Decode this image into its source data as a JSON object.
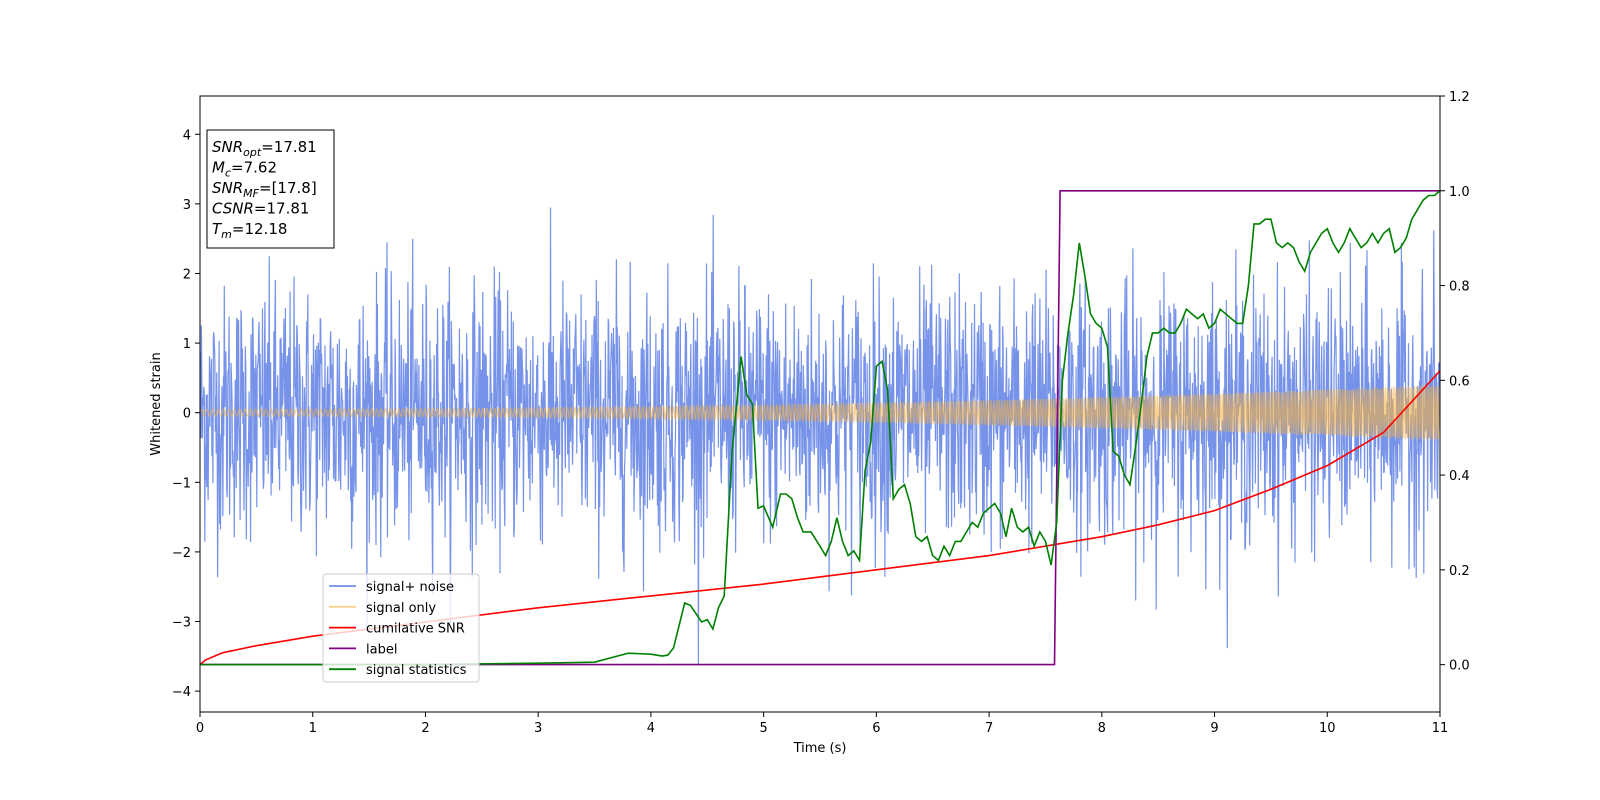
{
  "chart_data": {
    "type": "line",
    "xlabel": "Time (s)",
    "ylabel": "Whitened strain",
    "xlim": [
      0,
      11
    ],
    "ylim_left": [
      -4.3,
      4.55
    ],
    "ylim_right": [
      -0.1,
      1.2
    ],
    "xticks": [
      "0",
      "1",
      "2",
      "3",
      "4",
      "5",
      "6",
      "7",
      "8",
      "9",
      "10",
      "11"
    ],
    "yticks_left": [
      "−4",
      "−3",
      "−2",
      "−1",
      "0",
      "1",
      "2",
      "3",
      "4"
    ],
    "yticks_right": [
      "0.0",
      "0.2",
      "0.4",
      "0.6",
      "0.8",
      "1.0",
      "1.2"
    ],
    "grid": false,
    "legend_position": "lower-left",
    "annotation": {
      "lines": [
        {
          "base": "SNR",
          "sub": "opt",
          "value": "=17.81"
        },
        {
          "base": "M",
          "sub": "c",
          "value": "=7.62"
        },
        {
          "base": "SNR",
          "sub": "MF",
          "value": "=[17.8]"
        },
        {
          "base": "CSNR",
          "sub": "",
          "value": "=17.81"
        },
        {
          "base": "T",
          "sub": "m",
          "value": "=12.18"
        }
      ]
    },
    "series": [
      {
        "name": "signal+ noise",
        "axis": "left",
        "color": "#4169e1",
        "kind": "noise",
        "std": 0.9,
        "range": [
          -3.85,
          3.85
        ]
      },
      {
        "name": "signal only",
        "axis": "left",
        "color": "#f5b041",
        "kind": "chirp",
        "amplitude_start": 0.05,
        "amplitude_end": 0.4
      },
      {
        "name": "cumilative SNR",
        "axis": "right",
        "color": "#ff0000",
        "x": [
          0,
          0.05,
          0.2,
          0.5,
          1,
          2,
          3,
          4,
          5,
          6,
          7,
          8,
          8.5,
          9,
          9.5,
          10,
          10.5,
          11
        ],
        "y": [
          0.0,
          0.01,
          0.025,
          0.04,
          0.06,
          0.09,
          0.12,
          0.145,
          0.17,
          0.2,
          0.23,
          0.27,
          0.295,
          0.325,
          0.37,
          0.42,
          0.49,
          0.62
        ]
      },
      {
        "name": "label",
        "axis": "right",
        "color": "#800080",
        "x": [
          0,
          7.58,
          7.63,
          11
        ],
        "y": [
          0,
          0,
          1,
          1
        ]
      },
      {
        "name": "signal statistics",
        "axis": "right",
        "color": "#008000",
        "x": [
          0,
          1,
          2,
          3,
          3.5,
          3.7,
          3.8,
          4.0,
          4.1,
          4.15,
          4.2,
          4.3,
          4.35,
          4.45,
          4.5,
          4.55,
          4.6,
          4.65,
          4.72,
          4.8,
          4.85,
          4.9,
          4.95,
          5.0,
          5.08,
          5.12,
          5.15,
          5.2,
          5.25,
          5.3,
          5.35,
          5.42,
          5.5,
          5.55,
          5.6,
          5.65,
          5.7,
          5.75,
          5.8,
          5.85,
          5.9,
          5.95,
          6.0,
          6.05,
          6.1,
          6.15,
          6.2,
          6.25,
          6.3,
          6.35,
          6.4,
          6.45,
          6.5,
          6.55,
          6.6,
          6.65,
          6.7,
          6.75,
          6.8,
          6.85,
          6.9,
          6.95,
          7.0,
          7.05,
          7.1,
          7.15,
          7.2,
          7.25,
          7.3,
          7.35,
          7.4,
          7.45,
          7.5,
          7.55,
          7.6,
          7.65,
          7.7,
          7.75,
          7.8,
          7.85,
          7.9,
          7.95,
          8.0,
          8.05,
          8.1,
          8.15,
          8.2,
          8.25,
          8.3,
          8.35,
          8.4,
          8.45,
          8.5,
          8.55,
          8.6,
          8.65,
          8.7,
          8.75,
          8.8,
          8.85,
          8.9,
          8.95,
          9.0,
          9.05,
          9.1,
          9.15,
          9.2,
          9.25,
          9.3,
          9.35,
          9.4,
          9.45,
          9.5,
          9.55,
          9.6,
          9.65,
          9.7,
          9.75,
          9.8,
          9.85,
          9.9,
          9.95,
          10.0,
          10.05,
          10.1,
          10.15,
          10.2,
          10.25,
          10.3,
          10.35,
          10.4,
          10.45,
          10.5,
          10.55,
          10.6,
          10.65,
          10.7,
          10.75,
          10.8,
          10.85,
          10.9,
          10.95,
          11.0
        ],
        "y": [
          0,
          0,
          0,
          0.003,
          0.005,
          0.018,
          0.024,
          0.022,
          0.018,
          0.02,
          0.035,
          0.13,
          0.125,
          0.09,
          0.095,
          0.075,
          0.12,
          0.145,
          0.45,
          0.65,
          0.57,
          0.55,
          0.33,
          0.335,
          0.29,
          0.33,
          0.36,
          0.36,
          0.35,
          0.31,
          0.28,
          0.28,
          0.25,
          0.23,
          0.26,
          0.31,
          0.26,
          0.23,
          0.24,
          0.22,
          0.41,
          0.47,
          0.63,
          0.64,
          0.58,
          0.35,
          0.37,
          0.38,
          0.34,
          0.27,
          0.26,
          0.27,
          0.23,
          0.22,
          0.25,
          0.23,
          0.26,
          0.26,
          0.28,
          0.3,
          0.29,
          0.32,
          0.33,
          0.34,
          0.32,
          0.27,
          0.33,
          0.29,
          0.28,
          0.29,
          0.25,
          0.28,
          0.26,
          0.21,
          0.3,
          0.6,
          0.7,
          0.78,
          0.89,
          0.82,
          0.74,
          0.72,
          0.71,
          0.67,
          0.45,
          0.44,
          0.4,
          0.38,
          0.46,
          0.55,
          0.65,
          0.7,
          0.7,
          0.71,
          0.7,
          0.7,
          0.72,
          0.75,
          0.74,
          0.73,
          0.74,
          0.71,
          0.72,
          0.75,
          0.74,
          0.73,
          0.72,
          0.72,
          0.8,
          0.93,
          0.93,
          0.94,
          0.94,
          0.89,
          0.88,
          0.89,
          0.88,
          0.85,
          0.83,
          0.87,
          0.89,
          0.91,
          0.92,
          0.89,
          0.87,
          0.89,
          0.92,
          0.9,
          0.88,
          0.89,
          0.91,
          0.89,
          0.91,
          0.92,
          0.87,
          0.88,
          0.9,
          0.94,
          0.96,
          0.98,
          0.99,
          0.99,
          1.0
        ]
      }
    ]
  }
}
